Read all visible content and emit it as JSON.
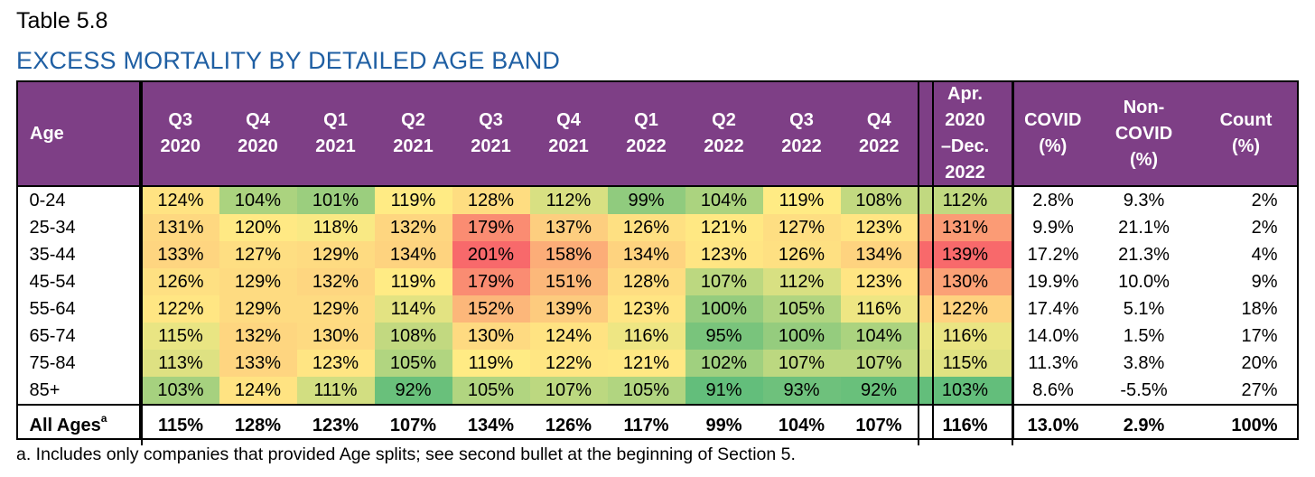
{
  "table_label": "Table 5.8",
  "title": "EXCESS MORTALITY BY DETAILED AGE BAND",
  "headers": {
    "age": "Age",
    "quarters": [
      [
        "Q3",
        "2020"
      ],
      [
        "Q4",
        "2020"
      ],
      [
        "Q1",
        "2021"
      ],
      [
        "Q2",
        "2021"
      ],
      [
        "Q3",
        "2021"
      ],
      [
        "Q4",
        "2021"
      ],
      [
        "Q1",
        "2022"
      ],
      [
        "Q2",
        "2022"
      ],
      [
        "Q3",
        "2022"
      ],
      [
        "Q4",
        "2022"
      ]
    ],
    "period": [
      "Apr.",
      "2020",
      "–Dec.",
      "2022"
    ],
    "covid": [
      "COVID",
      "(%)"
    ],
    "noncovid": [
      "Non-",
      "COVID",
      "(%)"
    ],
    "count": [
      "Count",
      "(%)"
    ]
  },
  "rows": [
    {
      "age": "0-24",
      "values": [
        "124%",
        "104%",
        "101%",
        "119%",
        "128%",
        "112%",
        "99%",
        "104%",
        "119%",
        "108%"
      ],
      "period": "112%",
      "covid": "2.8%",
      "noncovid": "9.3%",
      "count": "2%"
    },
    {
      "age": "25-34",
      "values": [
        "131%",
        "120%",
        "118%",
        "132%",
        "179%",
        "137%",
        "126%",
        "121%",
        "127%",
        "123%"
      ],
      "period": "131%",
      "covid": "9.9%",
      "noncovid": "21.1%",
      "count": "2%"
    },
    {
      "age": "35-44",
      "values": [
        "133%",
        "127%",
        "129%",
        "134%",
        "201%",
        "158%",
        "134%",
        "123%",
        "126%",
        "134%"
      ],
      "period": "139%",
      "covid": "17.2%",
      "noncovid": "21.3%",
      "count": "4%"
    },
    {
      "age": "45-54",
      "values": [
        "126%",
        "129%",
        "132%",
        "119%",
        "179%",
        "151%",
        "128%",
        "107%",
        "112%",
        "123%"
      ],
      "period": "130%",
      "covid": "19.9%",
      "noncovid": "10.0%",
      "count": "9%"
    },
    {
      "age": "55-64",
      "values": [
        "122%",
        "129%",
        "129%",
        "114%",
        "152%",
        "139%",
        "123%",
        "100%",
        "105%",
        "116%"
      ],
      "period": "122%",
      "covid": "17.4%",
      "noncovid": "5.1%",
      "count": "18%"
    },
    {
      "age": "65-74",
      "values": [
        "115%",
        "132%",
        "130%",
        "108%",
        "130%",
        "124%",
        "116%",
        "95%",
        "100%",
        "104%"
      ],
      "period": "116%",
      "covid": "14.0%",
      "noncovid": "1.5%",
      "count": "17%"
    },
    {
      "age": "75-84",
      "values": [
        "113%",
        "133%",
        "123%",
        "105%",
        "119%",
        "122%",
        "121%",
        "102%",
        "107%",
        "107%"
      ],
      "period": "115%",
      "covid": "11.3%",
      "noncovid": "3.8%",
      "count": "20%"
    },
    {
      "age": "85+",
      "values": [
        "103%",
        "124%",
        "111%",
        "92%",
        "105%",
        "107%",
        "105%",
        "91%",
        "93%",
        "92%"
      ],
      "period": "103%",
      "covid": "8.6%",
      "noncovid": "-5.5%",
      "count": "27%"
    }
  ],
  "total": {
    "age": "All Ages",
    "age_sup": "a",
    "values": [
      "115%",
      "128%",
      "123%",
      "107%",
      "134%",
      "126%",
      "117%",
      "99%",
      "104%",
      "107%"
    ],
    "period": "116%",
    "covid": "13.0%",
    "noncovid": "2.9%",
    "count": "100%"
  },
  "footnote": "a. Includes only companies that provided Age splits; see second bullet at the beginning of Section 5.",
  "colors": {
    "header_bg": "#7e3f86",
    "header_text": "#ffffff",
    "title": "#1f5fa3",
    "heat_low": "#63be7b",
    "heat_mid": "#ffeb84",
    "heat_high": "#f8696b"
  }
}
